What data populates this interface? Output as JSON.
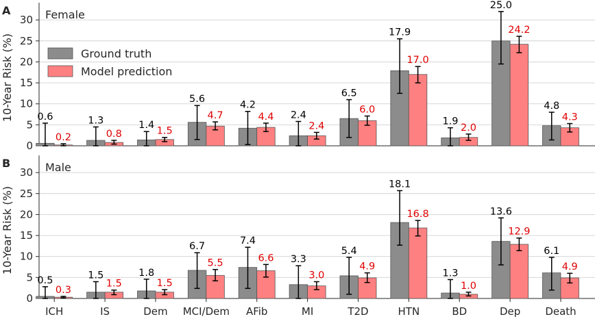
{
  "colors": {
    "ground_truth": "#8c8c8c",
    "model_prediction": "#ff8080",
    "gt_label": "#000000",
    "pred_label": "#e00000",
    "grid": "#d0d0d0"
  },
  "legend": {
    "location": "upper-left",
    "ground_truth": "Ground truth",
    "model_prediction": "Model prediction"
  },
  "chart_data": [
    {
      "type": "bar",
      "panel": "A",
      "title": "Female",
      "ylabel": "10-Year Risk (%)",
      "ylim": [
        0,
        34
      ],
      "yticks": [
        0,
        5,
        10,
        15,
        20,
        25,
        30
      ],
      "grid": true,
      "categories": [
        "ICH",
        "IS",
        "Dem",
        "MCI/Dem",
        "AFib",
        "MI",
        "T2D",
        "HTN",
        "BD",
        "Dep",
        "Death"
      ],
      "series": [
        {
          "name": "Ground truth",
          "values": [
            0.6,
            1.3,
            1.4,
            5.6,
            4.2,
            2.4,
            6.5,
            17.9,
            1.9,
            25.0,
            4.8
          ],
          "labels": [
            "0.6",
            "1.3",
            "1.4",
            "5.6",
            "4.2",
            "2.4",
            "6.5",
            "17.9",
            "1.9",
            "25.0",
            "4.8"
          ],
          "err_low": [
            0.0,
            0.0,
            0.0,
            1.5,
            0.3,
            0.0,
            2.0,
            12.5,
            0.0,
            19.5,
            1.4
          ],
          "err_high": [
            5.4,
            4.5,
            3.4,
            9.6,
            8.2,
            5.8,
            11.0,
            25.5,
            4.3,
            32.0,
            8.0
          ]
        },
        {
          "name": "Model prediction",
          "values": [
            0.2,
            0.8,
            1.5,
            4.7,
            4.4,
            2.4,
            6.0,
            17.0,
            2.0,
            24.2,
            4.3
          ],
          "labels": [
            "0.2",
            "0.8",
            "1.5",
            "4.7",
            "4.4",
            "2.4",
            "6.0",
            "17.0",
            "2.0",
            "24.2",
            "4.3"
          ],
          "err_low": [
            0.0,
            0.4,
            1.0,
            3.8,
            3.4,
            1.6,
            4.9,
            15.0,
            1.3,
            22.2,
            3.3
          ],
          "err_high": [
            0.5,
            1.3,
            2.0,
            5.7,
            5.4,
            3.2,
            7.1,
            18.9,
            2.8,
            26.1,
            5.3
          ]
        }
      ]
    },
    {
      "type": "bar",
      "panel": "B",
      "title": "Male",
      "ylabel": "10-Year Risk (%)",
      "ylim": [
        0,
        34
      ],
      "yticks": [
        0,
        5,
        10,
        15,
        20,
        25,
        30
      ],
      "grid": true,
      "categories": [
        "ICH",
        "IS",
        "Dem",
        "MCI/Dem",
        "AFib",
        "MI",
        "T2D",
        "HTN",
        "BD",
        "Dep",
        "Death"
      ],
      "series": [
        {
          "name": "Ground truth",
          "values": [
            0.5,
            1.5,
            1.8,
            6.7,
            7.4,
            3.3,
            5.4,
            18.1,
            1.3,
            13.6,
            6.1
          ],
          "labels": [
            "0.5",
            "1.5",
            "1.8",
            "6.7",
            "7.4",
            "3.3",
            "5.4",
            "18.1",
            "1.3",
            "13.6",
            "6.1"
          ],
          "err_low": [
            0.0,
            0.0,
            0.0,
            2.4,
            2.4,
            0.0,
            1.0,
            12.7,
            0.0,
            8.0,
            2.0
          ],
          "err_high": [
            2.8,
            4.0,
            4.6,
            10.9,
            12.2,
            7.8,
            9.8,
            25.7,
            4.5,
            19.2,
            9.8
          ]
        },
        {
          "name": "Model prediction",
          "values": [
            0.3,
            1.5,
            1.5,
            5.5,
            6.6,
            3.0,
            4.9,
            16.8,
            1.0,
            12.9,
            4.9
          ],
          "labels": [
            "0.3",
            "1.5",
            "1.5",
            "5.5",
            "6.6",
            "3.0",
            "4.9",
            "16.8",
            "1.0",
            "12.9",
            "4.9"
          ],
          "err_low": [
            0.1,
            0.9,
            0.9,
            4.2,
            5.1,
            2.1,
            3.8,
            14.9,
            0.6,
            11.4,
            3.7
          ],
          "err_high": [
            0.5,
            2.0,
            2.1,
            6.9,
            8.1,
            4.0,
            6.1,
            18.6,
            1.5,
            14.4,
            6.0
          ]
        }
      ]
    }
  ]
}
